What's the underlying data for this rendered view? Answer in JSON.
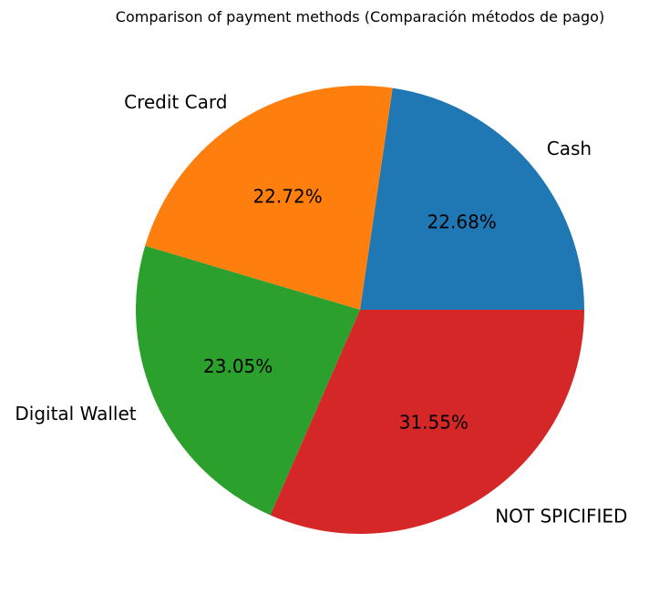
{
  "chart_data": {
    "type": "pie",
    "title": "Comparison of payment methods (Comparación métodos de pago)",
    "categories": [
      "Cash",
      "Credit Card",
      "Digital Wallet",
      "NOT SPICIFIED"
    ],
    "values": [
      22.68,
      22.72,
      23.05,
      31.55
    ],
    "value_labels": [
      "22.68%",
      "22.72%",
      "23.05%",
      "31.55%"
    ],
    "colors": [
      "#1f77b4",
      "#ff7f0e",
      "#2ca02c",
      "#d62728"
    ],
    "start_angle_deg": 0,
    "direction": "counterclockwise",
    "legend": "none"
  }
}
